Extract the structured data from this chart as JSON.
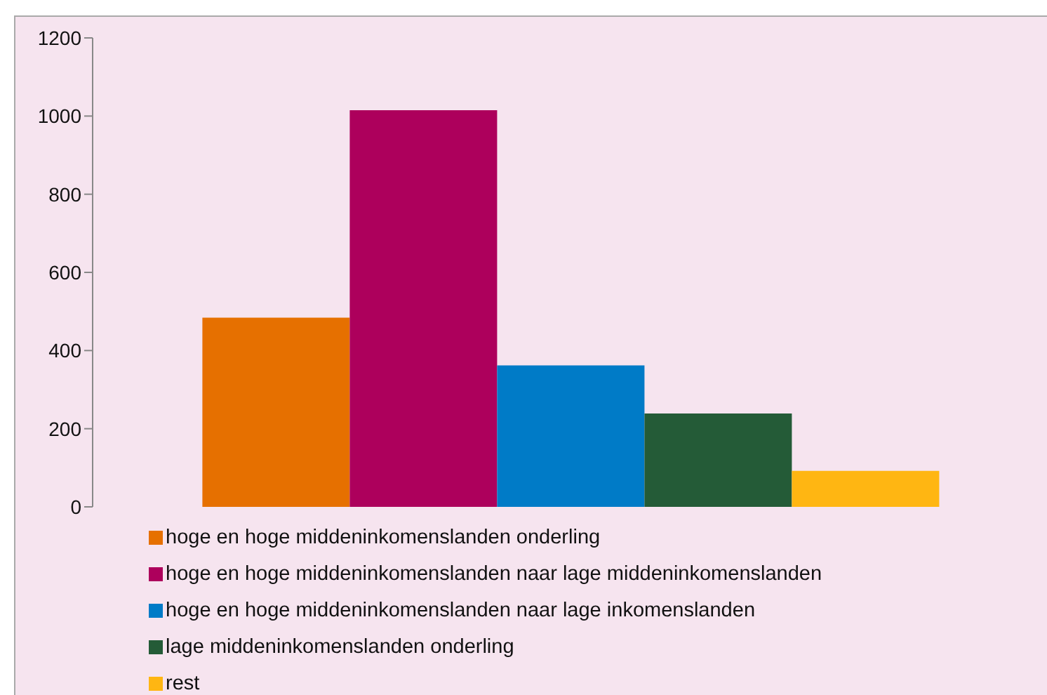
{
  "chart_data": {
    "type": "bar",
    "categories": [
      null
    ],
    "series": [
      {
        "name": "hoge en hoge middeninkomenslanden onderling",
        "color": "#e67000",
        "values": [
          484
        ]
      },
      {
        "name": "hoge en hoge middeninkomenslanden naar lage middeninkomenslanden",
        "color": "#ad005c",
        "values": [
          1015
        ]
      },
      {
        "name": "hoge en hoge middeninkomenslanden naar lage inkomenslanden",
        "color": "#007bc7",
        "values": [
          362
        ]
      },
      {
        "name": "lage middeninkomenslanden onderling",
        "color": "#245b37",
        "values": [
          239
        ]
      },
      {
        "name": "rest",
        "color": "#ffb612",
        "values": [
          92
        ]
      }
    ],
    "ylim": [
      0,
      1200
    ],
    "yticks": [
      0,
      200,
      400,
      600,
      800,
      1000,
      1200
    ],
    "grid": false,
    "legend": "bottom"
  }
}
